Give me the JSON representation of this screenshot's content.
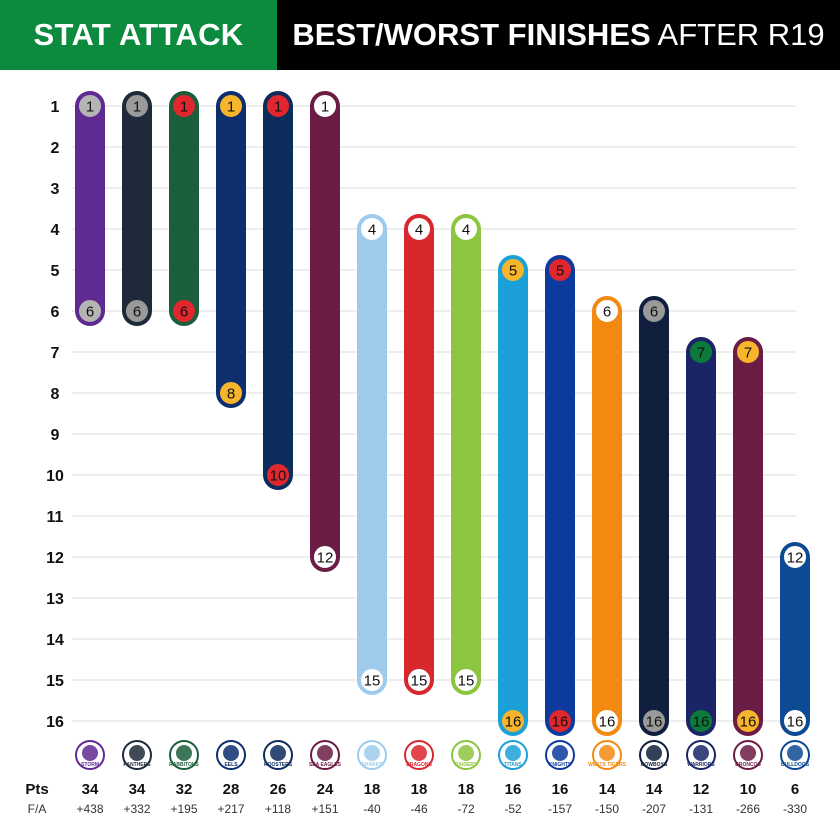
{
  "header": {
    "left_title": "STAT ATTACK",
    "right_title_bold": "BEST/WORST FINISHES",
    "right_title_rest": " AFTER R19"
  },
  "colors": {
    "header_left_bg": "#0c8a3e",
    "header_right_bg": "#000000",
    "gridline": "#dddddd"
  },
  "chart_data": {
    "type": "range-bar",
    "y_axis": {
      "ticks": [
        1,
        2,
        3,
        4,
        5,
        6,
        7,
        8,
        9,
        10,
        11,
        12,
        13,
        14,
        15,
        16
      ],
      "inverted": true,
      "label": ""
    },
    "grid": true,
    "row_labels": {
      "points": "Pts",
      "for_against": "F/A"
    },
    "teams": [
      {
        "logo": "STORM",
        "best": 1,
        "worst": 6,
        "pts": "34",
        "fa": "+438",
        "color": "#5f2a91",
        "badge_best": "#b5b5b5",
        "badge_worst": "#b5b5b5"
      },
      {
        "logo": "PANTHERS",
        "best": 1,
        "worst": 6,
        "pts": "34",
        "fa": "+332",
        "color": "#1e2a3a",
        "badge_best": "#9a9a9a",
        "badge_worst": "#9a9a9a"
      },
      {
        "logo": "RABBITOHS",
        "best": 1,
        "worst": 6,
        "pts": "32",
        "fa": "+195",
        "color": "#1b5e3b",
        "badge_best": "#e0272e",
        "badge_worst": "#e0272e"
      },
      {
        "logo": "EELS",
        "best": 1,
        "worst": 8,
        "pts": "28",
        "fa": "+217",
        "color": "#0d2f6e",
        "badge_best": "#f7b52c",
        "badge_worst": "#f7b52c"
      },
      {
        "logo": "ROOSTERS",
        "best": 1,
        "worst": 10,
        "pts": "26",
        "fa": "+118",
        "color": "#0c2c5c",
        "badge_best": "#e0272e",
        "badge_worst": "#e0272e"
      },
      {
        "logo": "SEA EAGLES",
        "best": 1,
        "worst": 12,
        "pts": "24",
        "fa": "+151",
        "color": "#6b1c44",
        "badge_best": "#ffffff",
        "badge_worst": "#ffffff"
      },
      {
        "logo": "SHARKS",
        "best": 4,
        "worst": 15,
        "pts": "18",
        "fa": "-40",
        "color": "#9ecbeb",
        "badge_best": "#ffffff",
        "badge_worst": "#ffffff"
      },
      {
        "logo": "DRAGONS",
        "best": 4,
        "worst": 15,
        "pts": "18",
        "fa": "-46",
        "color": "#d9272e",
        "badge_best": "#ffffff",
        "badge_worst": "#ffffff"
      },
      {
        "logo": "RAIDERS",
        "best": 4,
        "worst": 15,
        "pts": "18",
        "fa": "-72",
        "color": "#8cc63f",
        "badge_best": "#ffffff",
        "badge_worst": "#ffffff"
      },
      {
        "logo": "TITANS",
        "best": 5,
        "worst": 16,
        "pts": "16",
        "fa": "-52",
        "color": "#1ba0d8",
        "badge_best": "#f7b52c",
        "badge_worst": "#f7b52c"
      },
      {
        "logo": "KNIGHTS",
        "best": 5,
        "worst": 16,
        "pts": "16",
        "fa": "-157",
        "color": "#0d3a9e",
        "badge_best": "#e0272e",
        "badge_worst": "#e0272e"
      },
      {
        "logo": "WESTS TIGERS",
        "best": 6,
        "worst": 16,
        "pts": "14",
        "fa": "-150",
        "color": "#f28a12",
        "badge_best": "#ffffff",
        "badge_worst": "#ffffff"
      },
      {
        "logo": "COWBOYS",
        "best": 6,
        "worst": 16,
        "pts": "14",
        "fa": "-207",
        "color": "#0f1f3d",
        "badge_best": "#9a9a9a",
        "badge_worst": "#9a9a9a"
      },
      {
        "logo": "WARRIORS",
        "best": 7,
        "worst": 16,
        "pts": "12",
        "fa": "-131",
        "color": "#1a2466",
        "badge_best": "#0c7a3a",
        "badge_worst": "#0c7a3a"
      },
      {
        "logo": "BRONCOS",
        "best": 7,
        "worst": 16,
        "pts": "10",
        "fa": "-266",
        "color": "#6b1c44",
        "badge_best": "#f7b52c",
        "badge_worst": "#f7b52c"
      },
      {
        "logo": "BULLDOGS",
        "best": 12,
        "worst": 16,
        "pts": "6",
        "fa": "-330",
        "color": "#0d4a94",
        "badge_best": "#ffffff",
        "badge_worst": "#ffffff"
      }
    ]
  }
}
